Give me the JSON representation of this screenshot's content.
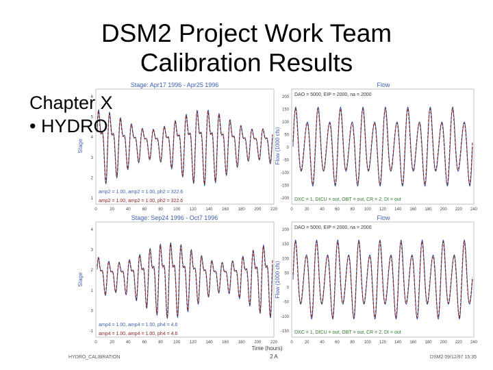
{
  "slide": {
    "title_line1": "DSM2 Project Work Team",
    "title_line2": "Calibration Results",
    "bullet1": "Chapter X",
    "bullet2": "• HYDRO"
  },
  "chart_data": [
    {
      "type": "line",
      "title": "Stage: Apr17 1996 - Apr25 1996",
      "ylabel": "Stage",
      "series": [
        {
          "color": "#1f4fa8"
        },
        {
          "color": "#8b1a1a"
        }
      ],
      "x_ticks": [
        0,
        20,
        40,
        60,
        80,
        100,
        120,
        140,
        160,
        180,
        200,
        220
      ],
      "y_ticks": [
        "6",
        "5",
        "4",
        "3",
        "2",
        "1"
      ],
      "n_cycles": 16,
      "legend_lines": [
        "amp2 = 1.00, amp2 = 1.00, ph2 = 322.6",
        "amp2 = 1.00, amp2 = 1.00, ph2 = 322.6"
      ]
    },
    {
      "type": "line",
      "title": "Flow",
      "ylabel": "Flow (1000 cfs)",
      "series": [
        {
          "color": "#1f4fa8"
        },
        {
          "color": "#8b1a1a"
        }
      ],
      "x_ticks": [
        0,
        20,
        40,
        60,
        80,
        100,
        120,
        140,
        160,
        180,
        200,
        220,
        240
      ],
      "y_ticks": [
        "200",
        "150",
        "100",
        "50",
        "0",
        "-50",
        "-100",
        "-150",
        "-200"
      ],
      "n_cycles": 16,
      "header_text": "DAO = 5000, EIP = 2000, na = 2000",
      "footer_text": "DXC = 1, DICU = out, OBT = out, CR = 2, DI = out"
    },
    {
      "type": "line",
      "title": "Stage: Sep24 1996 - Oct7 1996",
      "ylabel": "Stage",
      "series": [
        {
          "color": "#1f4fa8"
        },
        {
          "color": "#8b1a1a"
        }
      ],
      "x_ticks": [
        0,
        20,
        40,
        60,
        80,
        100,
        120,
        140,
        160,
        180,
        200,
        220
      ],
      "y_ticks": [
        "4",
        "3",
        "2",
        "1",
        "0",
        "-1"
      ],
      "n_cycles": 17,
      "legend_lines": [
        "amp4 = 1.00, amp4 = 1.00, ph4 = 4.6",
        "amp4 = 1.00, amp4 = 1.00, ph4 = 4.6"
      ]
    },
    {
      "type": "line",
      "title": "Flow",
      "ylabel": "Flow (1000 cfs)",
      "xlabel": "Time (hours)",
      "series": [
        {
          "color": "#1f4fa8"
        },
        {
          "color": "#8b1a1a"
        }
      ],
      "x_ticks": [
        0,
        20,
        40,
        60,
        80,
        100,
        120,
        140,
        160,
        180,
        200,
        220,
        240
      ],
      "y_ticks": [
        "200",
        "150",
        "100",
        "50",
        "0",
        "-50",
        "-100",
        "-150"
      ],
      "n_cycles": 17,
      "header_text": "DAO = 5000, EIP = 2000, na = 2000",
      "footer_text": "DXC = 1, DICU = out, OBT = out, CR = 2, DI = out"
    }
  ],
  "footer": {
    "left": "HYDRO_CALIBRATION",
    "center": "2 A",
    "right": "DSM2 09/12/97 15:35"
  }
}
